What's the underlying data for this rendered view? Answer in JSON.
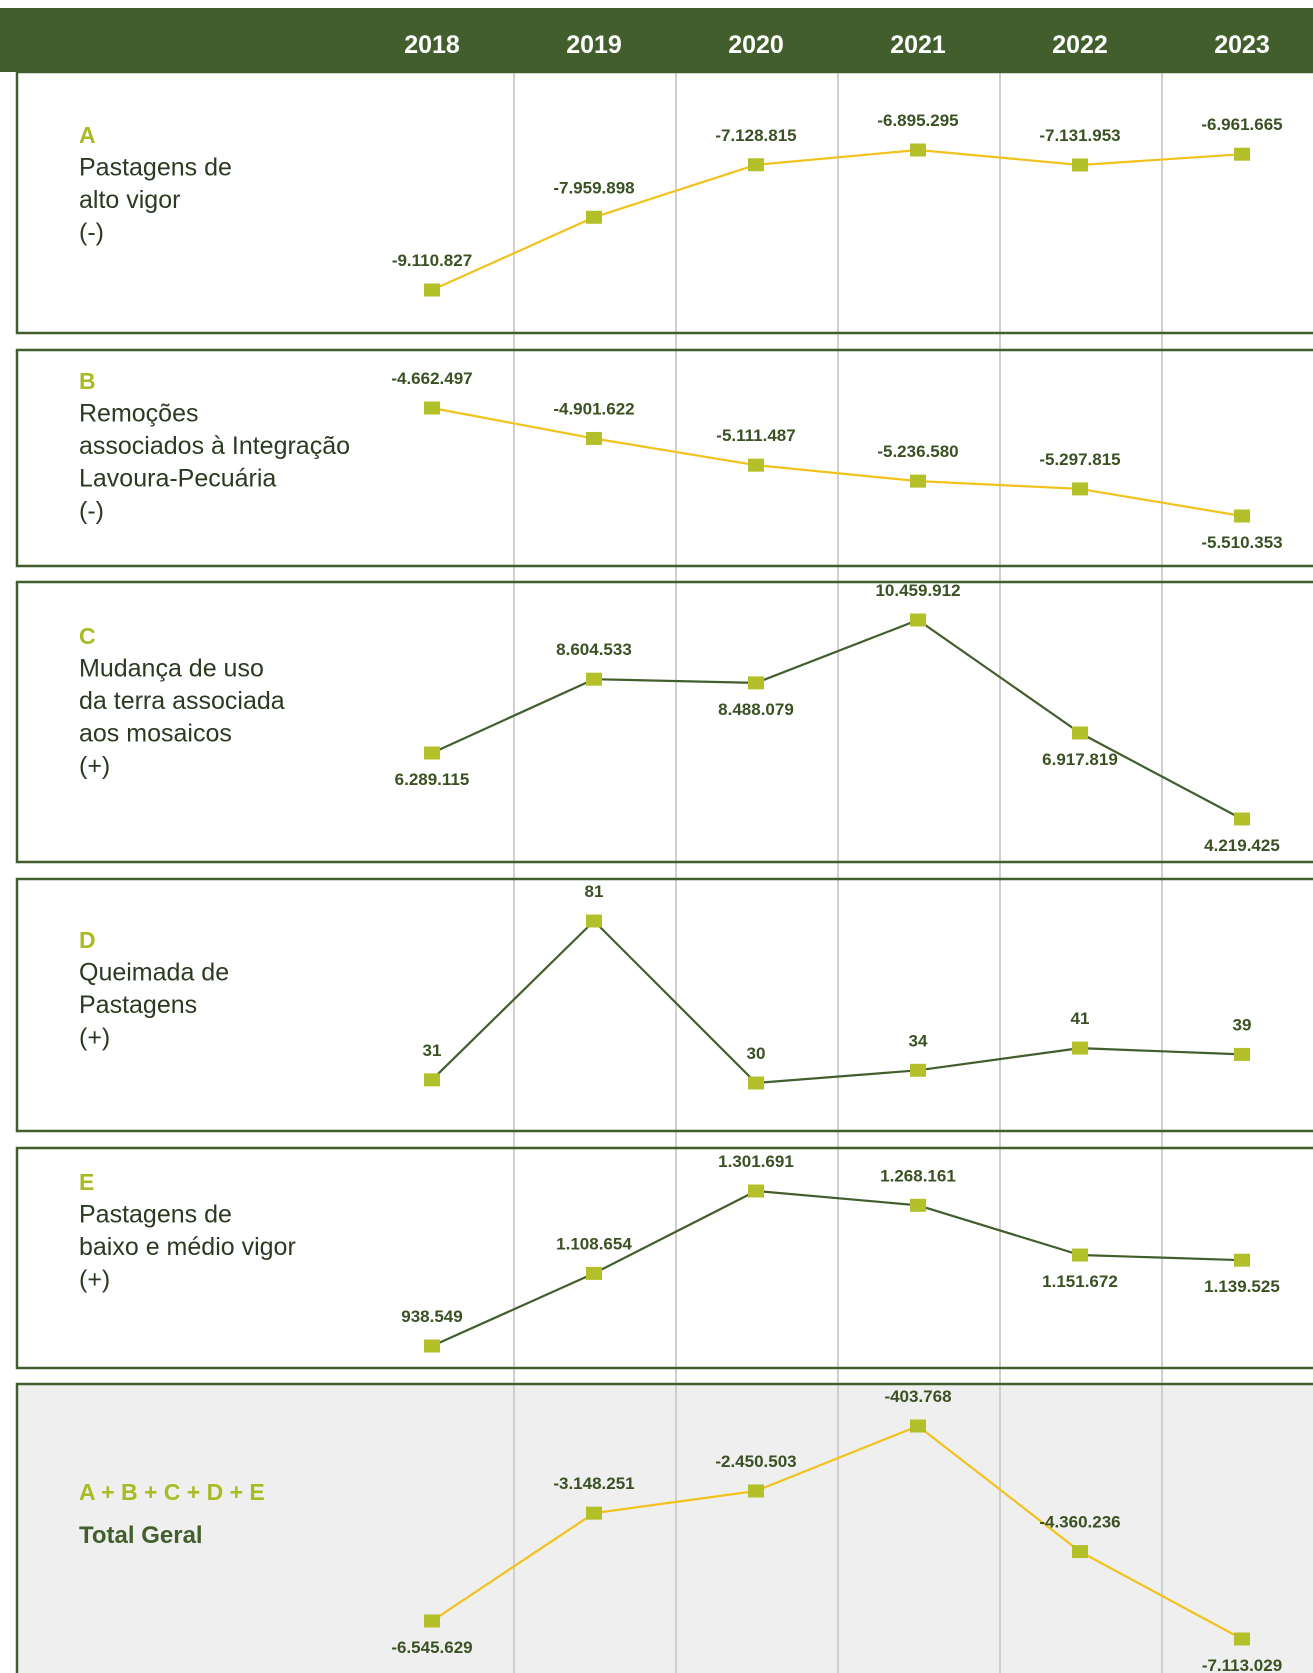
{
  "header": {
    "years": [
      "2018",
      "2019",
      "2020",
      "2021",
      "2022",
      "2023"
    ]
  },
  "colors": {
    "header_bg": "#435e2d",
    "border": "#435e2d",
    "accent_label": "#a9bb22",
    "marker": "#b3c02a",
    "line_negative": "#f2c21c",
    "line_positive": "#435e2d",
    "value_label": "#3a5223",
    "title_text": "#2b3a20",
    "total_bg": "#efefef",
    "gridline": "#cfcfcf"
  },
  "chart_data": [
    {
      "type": "line",
      "letter": "A",
      "title_lines": [
        "Pastagens de",
        "alto vigor",
        "(-)"
      ],
      "x": [
        "2018",
        "2019",
        "2020",
        "2021",
        "2022",
        "2023"
      ],
      "values": [
        -9110827,
        -7959898,
        -7128815,
        -6895295,
        -7131953,
        -6961665
      ],
      "labels": [
        "-9.110.827",
        "-7.959.898",
        "-7.128.815",
        "-6.895.295",
        "-7.131.953",
        "-6.961.665"
      ],
      "label_pos": [
        "above",
        "above",
        "above",
        "above",
        "above",
        "above"
      ],
      "line_color": "yellow",
      "grid": false
    },
    {
      "type": "line",
      "letter": "B",
      "title_lines": [
        "Remoções",
        "associados à Integração",
        "Lavoura-Pecuária",
        "(-)"
      ],
      "x": [
        "2018",
        "2019",
        "2020",
        "2021",
        "2022",
        "2023"
      ],
      "values": [
        -4662497,
        -4901622,
        -5111487,
        -5236580,
        -5297815,
        -5510353
      ],
      "labels": [
        "-4.662.497",
        "-4.901.622",
        "-5.111.487",
        "-5.236.580",
        "-5.297.815",
        "-5.510.353"
      ],
      "label_pos": [
        "above",
        "above",
        "above",
        "above",
        "above",
        "below"
      ],
      "line_color": "yellow",
      "grid": false
    },
    {
      "type": "line",
      "letter": "C",
      "title_lines": [
        "Mudança de uso",
        "da terra associada",
        "aos mosaicos",
        "(+)"
      ],
      "x": [
        "2018",
        "2019",
        "2020",
        "2021",
        "2022",
        "2023"
      ],
      "values": [
        6289115,
        8604533,
        8488079,
        10459912,
        6917819,
        4219425
      ],
      "labels": [
        "6.289.115",
        "8.604.533",
        "8.488.079",
        "10.459.912",
        "6.917.819",
        "4.219.425"
      ],
      "label_pos": [
        "below",
        "above",
        "below",
        "above",
        "below",
        "below"
      ],
      "line_color": "green",
      "grid": false
    },
    {
      "type": "line",
      "letter": "D",
      "title_lines": [
        "Queimada de",
        "Pastagens",
        "(+)"
      ],
      "x": [
        "2018",
        "2019",
        "2020",
        "2021",
        "2022",
        "2023"
      ],
      "values": [
        31,
        81,
        30,
        34,
        41,
        39
      ],
      "labels": [
        "31",
        "81",
        "30",
        "34",
        "41",
        "39"
      ],
      "label_pos": [
        "above",
        "above",
        "above",
        "above",
        "above",
        "above"
      ],
      "line_color": "green",
      "grid": false
    },
    {
      "type": "line",
      "letter": "E",
      "title_lines": [
        "Pastagens de",
        "baixo e médio vigor",
        "(+)"
      ],
      "x": [
        "2018",
        "2019",
        "2020",
        "2021",
        "2022",
        "2023"
      ],
      "values": [
        938549,
        1108654,
        1301691,
        1268161,
        1151672,
        1139525
      ],
      "labels": [
        "938.549",
        "1.108.654",
        "1.301.691",
        "1.268.161",
        "1.151.672",
        "1.139.525"
      ],
      "label_pos": [
        "above",
        "above",
        "above",
        "above",
        "below",
        "below"
      ],
      "line_color": "green",
      "grid": false
    },
    {
      "type": "line",
      "letter": "A + B + C + D + E",
      "title_lines": [
        "Total Geral"
      ],
      "x": [
        "2018",
        "2019",
        "2020",
        "2021",
        "2022",
        "2023"
      ],
      "values": [
        -6545629,
        -3148251,
        -2450503,
        -403768,
        -4360236,
        -7113029
      ],
      "labels": [
        "-6.545.629",
        "-3.148.251",
        "-2.450.503",
        "-403.768",
        "-4.360.236",
        "-7.113.029"
      ],
      "label_pos": [
        "below",
        "above",
        "above",
        "above",
        "above",
        "below"
      ],
      "line_color": "yellow",
      "grid": false
    }
  ]
}
